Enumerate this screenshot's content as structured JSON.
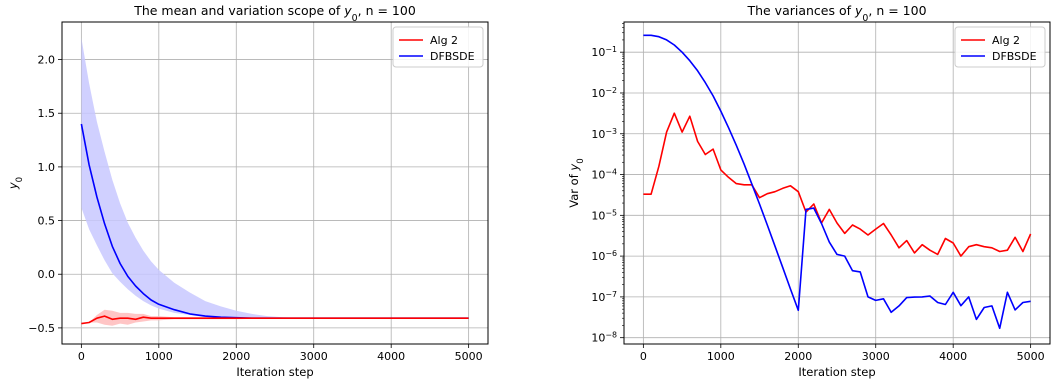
{
  "chart_data": [
    {
      "type": "line",
      "title": "The mean and variation scope of ",
      "title_sym": "y",
      "title_sub": "0",
      "title_tail": ", n = 100",
      "xlabel": "Iteration step",
      "ylabel": "y",
      "ylabel_sub": "0",
      "xlim": [
        -250,
        5250
      ],
      "ylim": [
        -0.65,
        2.35
      ],
      "xticks": [
        0,
        1000,
        2000,
        3000,
        4000,
        5000
      ],
      "yticks": [
        -0.5,
        0.0,
        0.5,
        1.0,
        1.5,
        2.0
      ],
      "xtick_labels": [
        "0",
        "1000",
        "2000",
        "3000",
        "4000",
        "5000"
      ],
      "ytick_labels": [
        "−0.5",
        "0.0",
        "0.5",
        "1.0",
        "1.5",
        "2.0"
      ],
      "grid": true,
      "legend_position": "top-right",
      "series": [
        {
          "name": "Alg 2",
          "color": "#ff0000",
          "x": [
            0,
            100,
            200,
            300,
            400,
            500,
            600,
            700,
            800,
            900,
            1000,
            1200,
            1400,
            1600,
            1800,
            2000,
            2500,
            3000,
            4000,
            5000
          ],
          "y": [
            -0.46,
            -0.45,
            -0.41,
            -0.39,
            -0.42,
            -0.41,
            -0.41,
            -0.42,
            -0.4,
            -0.41,
            -0.41,
            -0.41,
            -0.41,
            -0.41,
            -0.41,
            -0.41,
            -0.41,
            -0.41,
            -0.41,
            -0.41
          ],
          "band_low": [
            -0.46,
            -0.45,
            -0.45,
            -0.47,
            -0.48,
            -0.46,
            -0.47,
            -0.45,
            -0.44,
            -0.43,
            -0.43,
            -0.42,
            -0.42,
            -0.42,
            -0.42,
            -0.42,
            -0.41,
            -0.41,
            -0.41,
            -0.41
          ],
          "band_high": [
            -0.46,
            -0.45,
            -0.38,
            -0.33,
            -0.34,
            -0.36,
            -0.36,
            -0.37,
            -0.37,
            -0.39,
            -0.39,
            -0.4,
            -0.4,
            -0.4,
            -0.4,
            -0.4,
            -0.41,
            -0.41,
            -0.41,
            -0.41
          ],
          "band_color": "#ffbbbb"
        },
        {
          "name": "DFBSDE",
          "color": "#0000ff",
          "x": [
            0,
            100,
            200,
            300,
            400,
            500,
            600,
            700,
            800,
            900,
            1000,
            1200,
            1400,
            1600,
            1800,
            2000,
            2200,
            2400,
            2600,
            2800,
            3000,
            3500,
            4000,
            4500,
            5000
          ],
          "y": [
            1.4,
            1.02,
            0.72,
            0.47,
            0.26,
            0.1,
            -0.02,
            -0.11,
            -0.18,
            -0.24,
            -0.28,
            -0.33,
            -0.37,
            -0.39,
            -0.4,
            -0.405,
            -0.41,
            -0.41,
            -0.41,
            -0.41,
            -0.41,
            -0.41,
            -0.41,
            -0.41,
            -0.41
          ],
          "band_low": [
            0.62,
            0.42,
            0.27,
            0.13,
            0.01,
            -0.07,
            -0.14,
            -0.2,
            -0.25,
            -0.29,
            -0.32,
            -0.36,
            -0.38,
            -0.4,
            -0.405,
            -0.41,
            -0.41,
            -0.41,
            -0.41,
            -0.41,
            -0.41,
            -0.41,
            -0.41,
            -0.41,
            -0.41
          ],
          "band_high": [
            2.2,
            1.78,
            1.42,
            1.14,
            0.88,
            0.66,
            0.48,
            0.34,
            0.22,
            0.12,
            0.04,
            -0.08,
            -0.17,
            -0.25,
            -0.3,
            -0.34,
            -0.37,
            -0.39,
            -0.4,
            -0.405,
            -0.41,
            -0.41,
            -0.41,
            -0.41,
            -0.41
          ],
          "band_color": "#c8c8ff"
        }
      ]
    },
    {
      "type": "line",
      "title": "The variances of ",
      "title_sym": "y",
      "title_sub": "0",
      "title_tail": ", n = 100",
      "xlabel": "Iteration step",
      "ylabel": "Var of ",
      "ylabel_sym": "y",
      "ylabel_sub": "0",
      "yscale": "log",
      "xlim": [
        -250,
        5250
      ],
      "ylim": [
        7e-09,
        0.55
      ],
      "xticks": [
        0,
        1000,
        2000,
        3000,
        4000,
        5000
      ],
      "xtick_labels": [
        "0",
        "1000",
        "2000",
        "3000",
        "4000",
        "5000"
      ],
      "yticks_exp": [
        -8,
        -7,
        -6,
        -5,
        -4,
        -3,
        -2,
        -1
      ],
      "ytick_base": "10",
      "grid": true,
      "legend_position": "top-right",
      "series": [
        {
          "name": "Alg 2",
          "color": "#ff0000",
          "x": [
            0,
            100,
            200,
            300,
            400,
            500,
            600,
            700,
            800,
            900,
            1000,
            1100,
            1200,
            1300,
            1400,
            1500,
            1600,
            1700,
            1800,
            1900,
            2000,
            2100,
            2200,
            2300,
            2400,
            2500,
            2600,
            2700,
            2800,
            2900,
            3000,
            3100,
            3200,
            3300,
            3400,
            3500,
            3600,
            3700,
            3800,
            3900,
            4000,
            4100,
            4200,
            4300,
            4400,
            4500,
            4600,
            4700,
            4800,
            4900,
            5000
          ],
          "y": [
            3.3e-05,
            3.3e-05,
            0.00016,
            0.0011,
            0.0032,
            0.0011,
            0.0027,
            0.00065,
            0.00031,
            0.00042,
            0.00013,
            8.5e-05,
            6e-05,
            5.6e-05,
            5.6e-05,
            2.7e-05,
            3.4e-05,
            3.8e-05,
            4.6e-05,
            5.3e-05,
            3.8e-05,
            1.2e-05,
            1.9e-05,
            6.5e-06,
            1.4e-05,
            6.5e-06,
            3.6e-06,
            5.8e-06,
            4.6e-06,
            3.3e-06,
            4.6e-06,
            6.3e-06,
            3.3e-06,
            1.6e-06,
            2.4e-06,
            1.2e-06,
            1.9e-06,
            1.4e-06,
            1.1e-06,
            2.7e-06,
            2.1e-06,
            1e-06,
            1.7e-06,
            1.9e-06,
            1.7e-06,
            1.6e-06,
            1.3e-06,
            1.4e-06,
            2.9e-06,
            1.3e-06,
            3.5e-06
          ]
        },
        {
          "name": "DFBSDE",
          "color": "#0000ff",
          "x": [
            0,
            100,
            200,
            300,
            400,
            500,
            600,
            700,
            800,
            900,
            1000,
            1100,
            1200,
            1300,
            1400,
            1500,
            1600,
            1700,
            1800,
            1900,
            2000,
            2100,
            2200,
            2300,
            2400,
            2500,
            2600,
            2700,
            2800,
            2900,
            3000,
            3100,
            3200,
            3300,
            3400,
            3500,
            3600,
            3700,
            3800,
            3900,
            4000,
            4100,
            4200,
            4300,
            4400,
            4500,
            4600,
            4700,
            4800,
            4900,
            5000
          ],
          "y": [
            0.26,
            0.26,
            0.24,
            0.2,
            0.15,
            0.1,
            0.062,
            0.035,
            0.018,
            0.0085,
            0.0036,
            0.0014,
            0.00052,
            0.00018,
            5.9e-05,
            1.9e-05,
            5.8e-06,
            1.75e-06,
            5.2e-07,
            1.55e-07,
            4.7e-08,
            1.4e-05,
            1.5e-05,
            6.3e-06,
            2.2e-06,
            1.1e-06,
            1e-06,
            4.4e-07,
            4.1e-07,
            1e-07,
            8.2e-08,
            9e-08,
            4.2e-08,
            6e-08,
            9.6e-08,
            9.9e-08,
            1e-07,
            1.05e-07,
            7.3e-08,
            6.5e-08,
            1.3e-07,
            6.1e-08,
            1e-07,
            2.8e-08,
            5.5e-08,
            6e-08,
            1.7e-08,
            1.3e-07,
            4.8e-08,
            7.3e-08,
            7.8e-08
          ]
        }
      ]
    }
  ]
}
